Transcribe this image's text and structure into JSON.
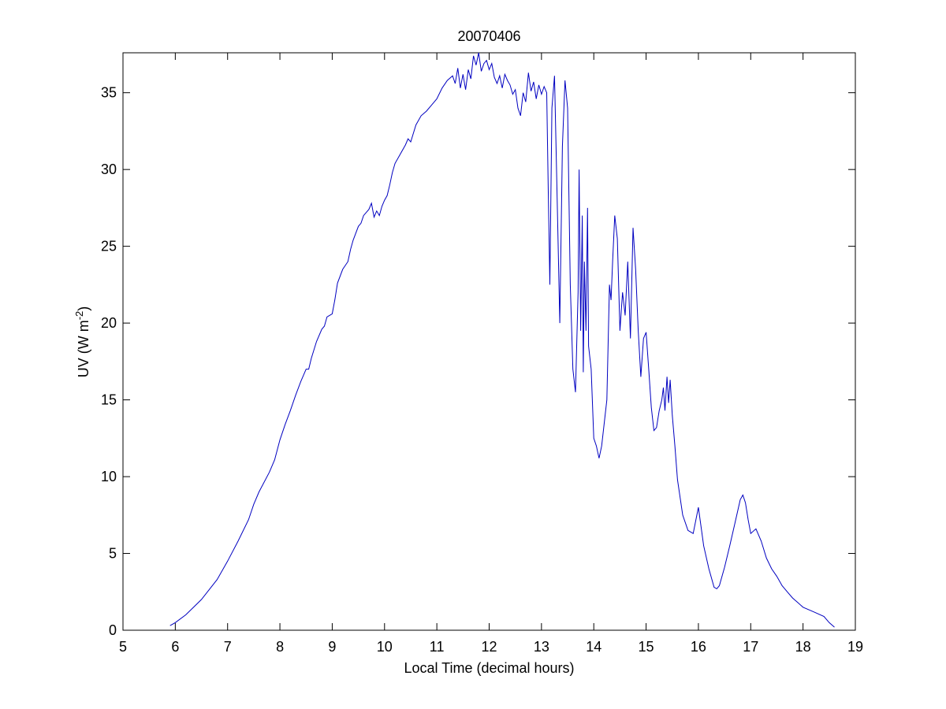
{
  "chart_data": {
    "type": "line",
    "title": "20070406",
    "xlabel": "Local Time (decimal hours)",
    "ylabel": "UV (W m",
    "ylabel_superscript": "-2",
    "ylabel_suffix": ")",
    "xlim": [
      5,
      19
    ],
    "ylim": [
      0,
      37.6
    ],
    "xticks": [
      5,
      6,
      7,
      8,
      9,
      10,
      11,
      12,
      13,
      14,
      15,
      16,
      17,
      18,
      19
    ],
    "yticks": [
      0,
      5,
      10,
      15,
      20,
      25,
      30,
      35
    ],
    "grid": false,
    "line_color": "#0000c0",
    "series": [
      {
        "x": [
          5.9,
          6.0,
          6.2,
          6.5,
          6.8,
          7.0,
          7.2,
          7.4,
          7.5,
          7.6,
          7.8,
          7.9,
          8.0,
          8.1,
          8.2,
          8.3,
          8.4,
          8.5,
          8.55,
          8.6,
          8.7,
          8.8,
          8.85,
          8.9,
          9.0,
          9.05,
          9.1,
          9.2,
          9.3,
          9.35,
          9.4,
          9.5,
          9.55,
          9.6,
          9.7,
          9.75,
          9.8,
          9.85,
          9.9,
          9.95,
          10.0,
          10.05,
          10.1,
          10.15,
          10.2,
          10.3,
          10.4,
          10.45,
          10.5,
          10.6,
          10.7,
          10.8,
          10.9,
          11.0,
          11.1,
          11.2,
          11.3,
          11.35,
          11.4,
          11.45,
          11.5,
          11.55,
          11.6,
          11.65,
          11.7,
          11.75,
          11.8,
          11.85,
          11.9,
          11.95,
          12.0,
          12.05,
          12.1,
          12.15,
          12.2,
          12.25,
          12.3,
          12.35,
          12.4,
          12.45,
          12.5,
          12.55,
          12.6,
          12.65,
          12.7,
          12.75,
          12.8,
          12.85,
          12.9,
          12.95,
          13.0,
          13.05,
          13.1,
          13.13,
          13.16,
          13.2,
          13.25,
          13.3,
          13.35,
          13.4,
          13.45,
          13.5,
          13.55,
          13.6,
          13.65,
          13.7,
          13.72,
          13.75,
          13.78,
          13.8,
          13.82,
          13.85,
          13.88,
          13.9,
          13.95,
          14.0,
          14.05,
          14.1,
          14.15,
          14.2,
          14.25,
          14.3,
          14.33,
          14.36,
          14.4,
          14.45,
          14.5,
          14.55,
          14.6,
          14.65,
          14.7,
          14.75,
          14.8,
          14.85,
          14.9,
          14.95,
          15.0,
          15.05,
          15.1,
          15.15,
          15.2,
          15.25,
          15.3,
          15.33,
          15.36,
          15.4,
          15.43,
          15.46,
          15.5,
          15.55,
          15.6,
          15.7,
          15.8,
          15.9,
          16.0,
          16.1,
          16.2,
          16.3,
          16.35,
          16.4,
          16.5,
          16.6,
          16.7,
          16.8,
          16.85,
          16.9,
          16.95,
          17.0,
          17.1,
          17.2,
          17.3,
          17.4,
          17.5,
          17.6,
          17.7,
          17.8,
          17.9,
          18.0,
          18.2,
          18.4,
          18.5,
          18.6
        ],
        "values": [
          0.3,
          0.5,
          1.0,
          2.0,
          3.3,
          4.5,
          5.8,
          7.2,
          8.2,
          9.0,
          10.3,
          11.1,
          12.4,
          13.4,
          14.3,
          15.3,
          16.2,
          17.0,
          17.0,
          17.7,
          18.8,
          19.6,
          19.8,
          20.4,
          20.6,
          21.5,
          22.6,
          23.5,
          24.0,
          24.8,
          25.4,
          26.3,
          26.5,
          27.0,
          27.4,
          27.8,
          26.9,
          27.3,
          27.0,
          27.6,
          28.0,
          28.3,
          29.0,
          29.8,
          30.4,
          31.0,
          31.6,
          32.0,
          31.8,
          32.9,
          33.5,
          33.8,
          34.2,
          34.6,
          35.3,
          35.8,
          36.1,
          35.6,
          36.6,
          35.3,
          36.2,
          35.2,
          36.5,
          35.9,
          37.4,
          36.8,
          37.6,
          36.4,
          36.9,
          37.1,
          36.5,
          36.9,
          36.0,
          35.6,
          36.1,
          35.3,
          36.2,
          35.8,
          35.5,
          34.9,
          35.2,
          34.0,
          33.5,
          35.0,
          34.4,
          36.3,
          35.1,
          35.7,
          34.6,
          35.5,
          34.9,
          35.4,
          35.0,
          28.5,
          22.5,
          34.0,
          36.1,
          28.0,
          20.0,
          31.5,
          35.8,
          34.0,
          22.5,
          17.0,
          15.5,
          22.0,
          30.0,
          19.5,
          27.0,
          16.8,
          24.0,
          19.5,
          27.5,
          18.5,
          17.0,
          12.5,
          12.0,
          11.2,
          12.0,
          13.5,
          15.0,
          22.5,
          21.5,
          24.0,
          27.0,
          25.5,
          19.5,
          22.0,
          20.5,
          24.0,
          19.0,
          26.2,
          23.5,
          19.5,
          16.5,
          19.0,
          19.4,
          17.0,
          14.5,
          13.0,
          13.2,
          14.3,
          15.0,
          15.8,
          14.3,
          16.5,
          14.8,
          16.3,
          14.0,
          12.0,
          9.8,
          7.5,
          6.5,
          6.3,
          8.0,
          5.5,
          4.0,
          2.8,
          2.7,
          2.9,
          4.1,
          5.5,
          7.0,
          8.5,
          8.8,
          8.3,
          7.2,
          6.3,
          6.6,
          5.8,
          4.7,
          4.0,
          3.5,
          2.9,
          2.5,
          2.1,
          1.8,
          1.5,
          1.2,
          0.9,
          0.5,
          0.2
        ]
      }
    ]
  }
}
